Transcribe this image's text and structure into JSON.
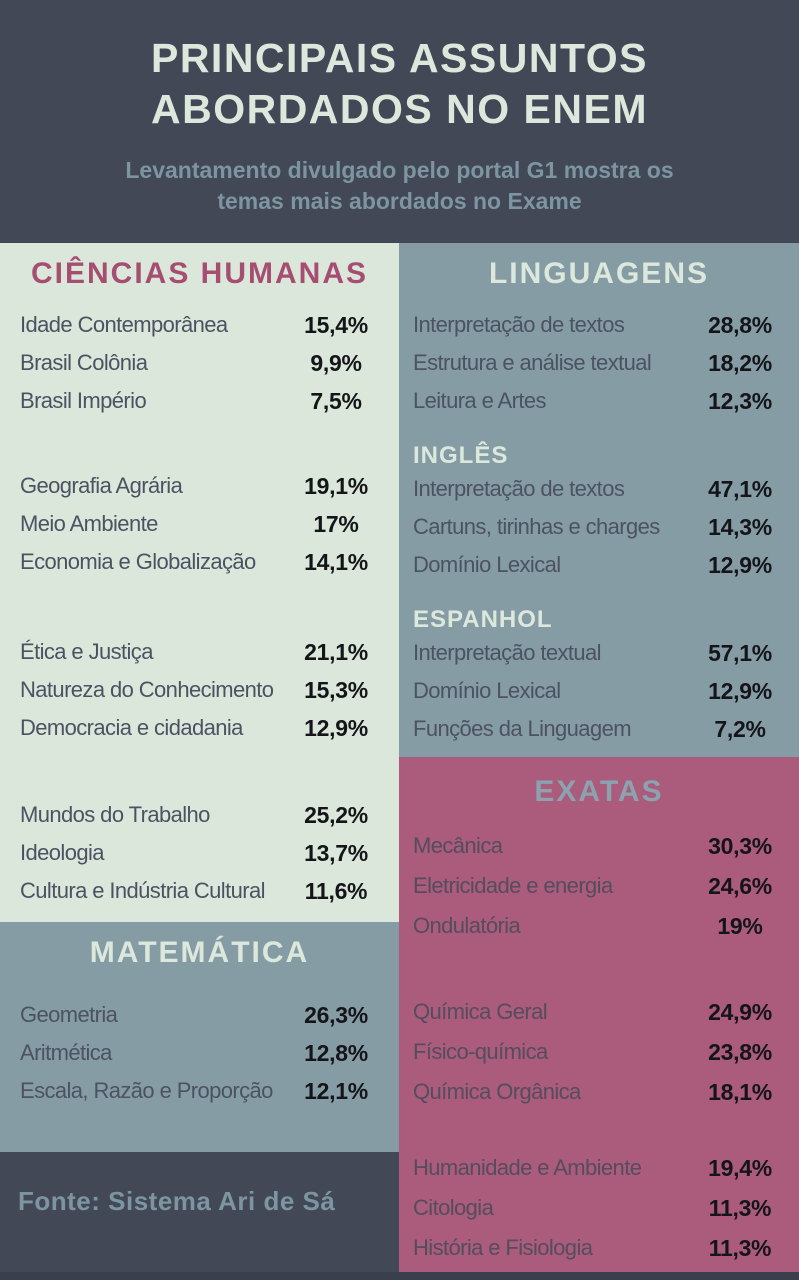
{
  "header": {
    "title_line1": "PRINCIPAIS ASSUNTOS",
    "title_line2": "ABORDADOS NO ENEM",
    "subtitle_line1": "Levantamento divulgado pelo portal G1 mostra os",
    "subtitle_line2": "temas mais abordados no Exame"
  },
  "palette": {
    "dark_slate": "#424855",
    "mint_background": "#dce7db",
    "gray_blue_background": "#869ca5",
    "pink_background": "#ab5b7c",
    "title_mint": "#dde8dd",
    "subtitle_gray_blue": "#7d95a1",
    "rose_title": "#a54e71",
    "steel_title": "#8ba3af",
    "label_slate": "#4c5262",
    "value_black": "#141519"
  },
  "sections": {
    "humanas": {
      "title": "CIÊNCIAS HUMANAS",
      "groups": [
        {
          "items": [
            {
              "label": "Idade Contemporânea",
              "value": "15,4%"
            },
            {
              "label": "Brasil Colônia",
              "value": "9,9%"
            },
            {
              "label": "Brasil Império",
              "value": "7,5%"
            }
          ]
        },
        {
          "items": [
            {
              "label": "Geografia Agrária",
              "value": "19,1%"
            },
            {
              "label": "Meio Ambiente",
              "value": "17%"
            },
            {
              "label": "Economia e Globalização",
              "value": "14,1%"
            }
          ]
        },
        {
          "items": [
            {
              "label": "Ética e Justiça",
              "value": "21,1%"
            },
            {
              "label": "Natureza do Conhecimento",
              "value": "15,3%"
            },
            {
              "label": "Democracia e cidadania",
              "value": "12,9%"
            }
          ]
        },
        {
          "items": [
            {
              "label": "Mundos do Trabalho",
              "value": "25,2%"
            },
            {
              "label": "Ideologia",
              "value": "13,7%"
            },
            {
              "label": "Cultura e Indústria Cultural",
              "value": "11,6%"
            }
          ]
        }
      ]
    },
    "linguagens": {
      "title": "LINGUAGENS",
      "groups": [
        {
          "items": [
            {
              "label": "Interpretação de textos",
              "value": "28,8%"
            },
            {
              "label": "Estrutura e análise textual",
              "value": "18,2%"
            },
            {
              "label": "Leitura e Artes",
              "value": "12,3%"
            }
          ]
        },
        {
          "subtitle": "INGLÊS",
          "items": [
            {
              "label": "Interpretação de textos",
              "value": "47,1%"
            },
            {
              "label": "Cartuns, tirinhas e charges",
              "value": "14,3%"
            },
            {
              "label": "Domínio Lexical",
              "value": "12,9%"
            }
          ]
        },
        {
          "subtitle": "ESPANHOL",
          "items": [
            {
              "label": "Interpretação textual",
              "value": "57,1%"
            },
            {
              "label": "Domínio Lexical",
              "value": "12,9%"
            },
            {
              "label": "Funções da Linguagem",
              "value": "7,2%"
            }
          ]
        }
      ]
    },
    "matematica": {
      "title": "MATEMÁTICA",
      "groups": [
        {
          "items": [
            {
              "label": "Geometria",
              "value": "26,3%"
            },
            {
              "label": "Aritmética",
              "value": "12,8%"
            },
            {
              "label": "Escala, Razão e Proporção",
              "value": "12,1%"
            }
          ]
        }
      ]
    },
    "exatas": {
      "title": "EXATAS",
      "groups": [
        {
          "items": [
            {
              "label": "Mecânica",
              "value": "30,3%"
            },
            {
              "label": "Eletricidade e energia",
              "value": "24,6%"
            },
            {
              "label": "Ondulatória",
              "value": "19%"
            }
          ]
        },
        {
          "items": [
            {
              "label": "Química Geral",
              "value": "24,9%"
            },
            {
              "label": "Físico-química",
              "value": "23,8%"
            },
            {
              "label": "Química Orgânica",
              "value": "18,1%"
            }
          ]
        },
        {
          "items": [
            {
              "label": "Humanidade e Ambiente",
              "value": "19,4%"
            },
            {
              "label": "Citologia",
              "value": "11,3%"
            },
            {
              "label": "História e Fisiologia",
              "value": "11,3%"
            }
          ]
        }
      ]
    }
  },
  "footer": {
    "source": "Fonte: Sistema Ari de Sá"
  },
  "chart_data": [
    {
      "type": "table",
      "title": "CIÊNCIAS HUMANAS",
      "categories": [
        "Idade Contemporânea",
        "Brasil Colônia",
        "Brasil Império",
        "Geografia Agrária",
        "Meio Ambiente",
        "Economia e Globalização",
        "Ética e Justiça",
        "Natureza do Conhecimento",
        "Democracia e cidadania",
        "Mundos do Trabalho",
        "Ideologia",
        "Cultura e Indústria Cultural"
      ],
      "values": [
        15.4,
        9.9,
        7.5,
        19.1,
        17,
        14.1,
        21.1,
        15.3,
        12.9,
        25.2,
        13.7,
        11.6
      ],
      "unit": "%"
    },
    {
      "type": "table",
      "title": "LINGUAGENS",
      "categories": [
        "Interpretação de textos",
        "Estrutura e análise textual",
        "Leitura e Artes"
      ],
      "values": [
        28.8,
        18.2,
        12.3
      ],
      "unit": "%"
    },
    {
      "type": "table",
      "title": "LINGUAGENS - INGLÊS",
      "categories": [
        "Interpretação de textos",
        "Cartuns, tirinhas e charges",
        "Domínio Lexical"
      ],
      "values": [
        47.1,
        14.3,
        12.9
      ],
      "unit": "%"
    },
    {
      "type": "table",
      "title": "LINGUAGENS - ESPANHOL",
      "categories": [
        "Interpretação textual",
        "Domínio Lexical",
        "Funções da Linguagem"
      ],
      "values": [
        57.1,
        12.9,
        7.2
      ],
      "unit": "%"
    },
    {
      "type": "table",
      "title": "MATEMÁTICA",
      "categories": [
        "Geometria",
        "Aritmética",
        "Escala, Razão e Proporção"
      ],
      "values": [
        26.3,
        12.8,
        12.1
      ],
      "unit": "%"
    },
    {
      "type": "table",
      "title": "EXATAS",
      "categories": [
        "Mecânica",
        "Eletricidade e energia",
        "Ondulatória",
        "Química Geral",
        "Físico-química",
        "Química Orgânica",
        "Humanidade e Ambiente",
        "Citologia",
        "História e Fisiologia"
      ],
      "values": [
        30.3,
        24.6,
        19,
        24.9,
        23.8,
        18.1,
        19.4,
        11.3,
        11.3
      ],
      "unit": "%"
    }
  ]
}
